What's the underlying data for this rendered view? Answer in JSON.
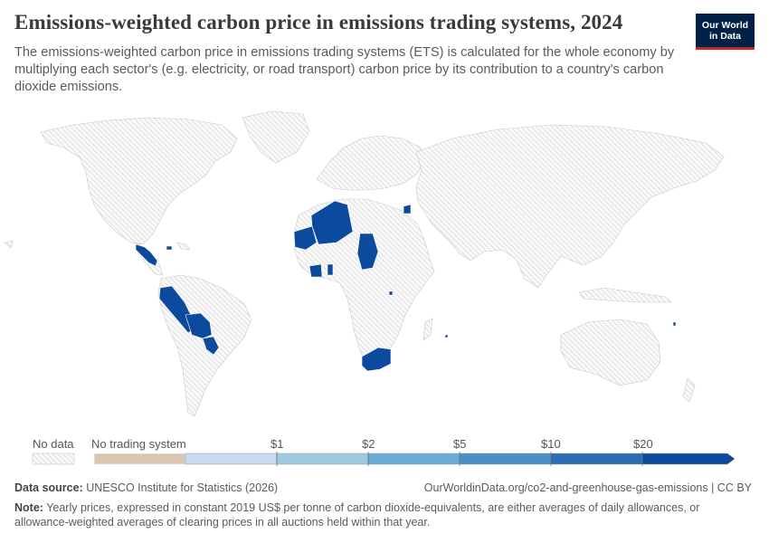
{
  "header": {
    "title": "Emissions-weighted carbon price in emissions trading systems, 2024",
    "subtitle": "The emissions-weighted carbon price in emissions trading systems (ETS) is calculated for the whole economy by multiplying each sector's (e.g. electricity, or road transport) carbon price by its contribution to a country's carbon dioxide emissions."
  },
  "logo": {
    "line1": "Our World",
    "line2": "in Data",
    "bg_color": "#002147",
    "accent_color": "#ce261e"
  },
  "map": {
    "no_data_fill": "hatched-gray",
    "highlight_color": "#0b4a9c",
    "highlighted_regions": [
      "Mexico",
      "Guatemala",
      "Honduras",
      "Nicaragua",
      "Cuba",
      "Peru",
      "Bolivia",
      "Paraguay",
      "Algeria",
      "Mauritania",
      "Mali",
      "Niger",
      "Chad",
      "Côte d'Ivoire",
      "Ghana",
      "South Africa",
      "Lesotho",
      "Jordan",
      "Rwanda"
    ]
  },
  "legend": {
    "no_data_label": "No data",
    "no_trading_label": "No trading system",
    "no_trading_color": "#dac7b2",
    "ticks": [
      "$1",
      "$2",
      "$5",
      "$10",
      "$20"
    ],
    "bin_colors": [
      "#c7dbef",
      "#9dcae1",
      "#6aaed6",
      "#4a90c8",
      "#2a6db4",
      "#0b4a9c"
    ]
  },
  "footer": {
    "source_label": "Data source:",
    "source_text": "UNESCO Institute for Statistics (2026)",
    "url": "OurWorldinData.org/co2-and-greenhouse-gas-emissions | CC BY",
    "note_label": "Note:",
    "note_text": "Yearly prices, expressed in constant 2019 US$ per tonne of carbon dioxide-equivalents, are either averages of daily allowances, or allowance-weighted averages of clearing prices in all auctions held within that year."
  }
}
